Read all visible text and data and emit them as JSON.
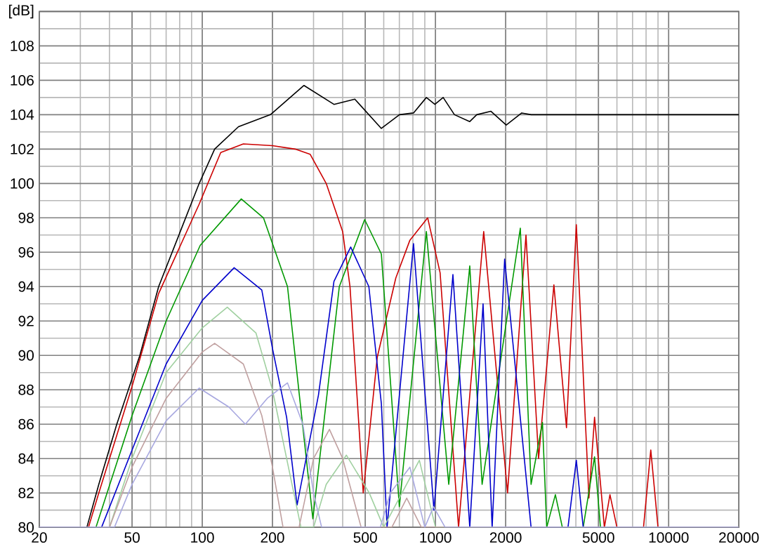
{
  "chart_data": {
    "type": "line",
    "log": "x",
    "grid": true,
    "marker": "none",
    "line_style": "solid",
    "xlim": [
      20,
      20000
    ],
    "ylim": [
      80,
      110
    ],
    "xticks": [
      20,
      50,
      100,
      200,
      500,
      1000,
      2000,
      5000,
      10000,
      20000
    ],
    "yticks": [
      80,
      82,
      84,
      86,
      88,
      90,
      92,
      94,
      96,
      98,
      100,
      102,
      104,
      106,
      108,
      {
        "value": 110,
        "label": "[dB]"
      }
    ],
    "series": [
      {
        "color": "#000000",
        "x": [
          20,
          32,
          36,
          43,
          54,
          65,
          97,
          113,
          143,
          196,
          273,
          367,
          451,
          586,
          701,
          805,
          914,
          994,
          1079,
          1206,
          1403,
          1503,
          1727,
          2011,
          2343,
          2573,
          3090,
          4070,
          4487,
          20000
        ],
        "values": [
          80,
          80,
          82.5,
          86,
          90,
          94,
          100,
          102,
          103.3,
          104,
          105.7,
          104.6,
          104.9,
          103.2,
          104,
          104.1,
          105,
          104.6,
          105,
          104,
          103.6,
          104,
          104.2,
          103.4,
          104.1,
          104,
          104,
          104,
          104,
          104
        ]
      },
      {
        "color": "#cc0000",
        "x": [
          20,
          32.5,
          36,
          50,
          65,
          97,
          120,
          150,
          200,
          250,
          290,
          340,
          400,
          430,
          490,
          563,
          676,
          777,
          926,
          1047,
          1256,
          1610,
          2037,
          2444,
          2768,
          3220,
          3646,
          4018,
          4550,
          4810,
          5300,
          5600,
          6000,
          7800,
          8380,
          9000,
          20000
        ],
        "values": [
          80,
          80,
          82,
          88.2,
          93.6,
          98.8,
          101.8,
          102.3,
          102.2,
          102,
          101.7,
          100,
          97.2,
          94,
          82,
          89.9,
          94.5,
          96.7,
          98,
          94.8,
          80,
          97.2,
          82,
          97,
          84,
          94.1,
          85.8,
          97.6,
          81.7,
          86.4,
          80,
          81.9,
          80,
          80,
          84.5,
          80,
          80
        ]
      },
      {
        "color": "#009900",
        "x": [
          20,
          35,
          50,
          70,
          98,
          147,
          183,
          232,
          298,
          387,
          497,
          586,
          700,
          914,
          1140,
          1403,
          1585,
          2311,
          2570,
          2876,
          3000,
          3267,
          3500,
          4300,
          4810,
          5100,
          20000
        ],
        "values": [
          80,
          80,
          86.5,
          92,
          96.4,
          99.1,
          98,
          94,
          80.5,
          94,
          97.9,
          95.9,
          81.2,
          97.2,
          82.5,
          95.2,
          82.5,
          97.4,
          82.5,
          86.1,
          80,
          81.9,
          80,
          80,
          84.1,
          80,
          80
        ]
      },
      {
        "color": "#0000cc",
        "x": [
          20,
          37,
          50,
          70,
          100,
          137,
          180,
          200,
          230,
          255,
          315,
          367,
          433,
          518,
          586,
          620,
          805,
          985,
          1188,
          1403,
          1600,
          1750,
          1980,
          2570,
          3700,
          4018,
          4300,
          20000
        ],
        "values": [
          80,
          80,
          84.5,
          89.5,
          93.2,
          95.1,
          93.8,
          90.4,
          86.4,
          81.3,
          87.7,
          94.3,
          96.3,
          94,
          87.2,
          80,
          96.5,
          81,
          94.7,
          80,
          93,
          80,
          95.6,
          80,
          80,
          83.9,
          80,
          80
        ]
      },
      {
        "color": "#a0d0a0",
        "x": [
          20,
          40,
          50,
          70,
          100,
          128,
          170,
          200,
          230,
          265,
          300,
          340,
          415,
          520,
          600,
          853,
          1000,
          20000
        ],
        "values": [
          80,
          80,
          84,
          89,
          91.6,
          92.8,
          91.3,
          88,
          84,
          80,
          80,
          82.5,
          84.2,
          82,
          80,
          83.9,
          80,
          80
        ]
      },
      {
        "color": "#c0a0a0",
        "x": [
          20,
          40,
          50,
          70,
          100,
          113,
          150,
          180,
          200,
          222,
          260,
          300,
          351,
          400,
          480,
          650,
          753,
          870,
          20000
        ],
        "values": [
          80,
          80,
          83.5,
          87.5,
          90.2,
          90.7,
          89.5,
          86.5,
          83.5,
          80,
          80,
          84,
          85.7,
          84,
          80,
          80,
          81.7,
          80,
          80
        ]
      },
      {
        "color": "#a8a8e0",
        "x": [
          20,
          42,
          50,
          70,
          97,
          130,
          153,
          190,
          232,
          270,
          300,
          325,
          580,
          640,
          777,
          900,
          981,
          1100,
          20000
        ],
        "values": [
          80,
          80,
          82.5,
          86.2,
          88.1,
          87,
          86,
          87.5,
          88.4,
          86,
          82,
          80,
          80,
          82,
          83.5,
          80,
          81.2,
          80,
          80
        ]
      }
    ]
  }
}
